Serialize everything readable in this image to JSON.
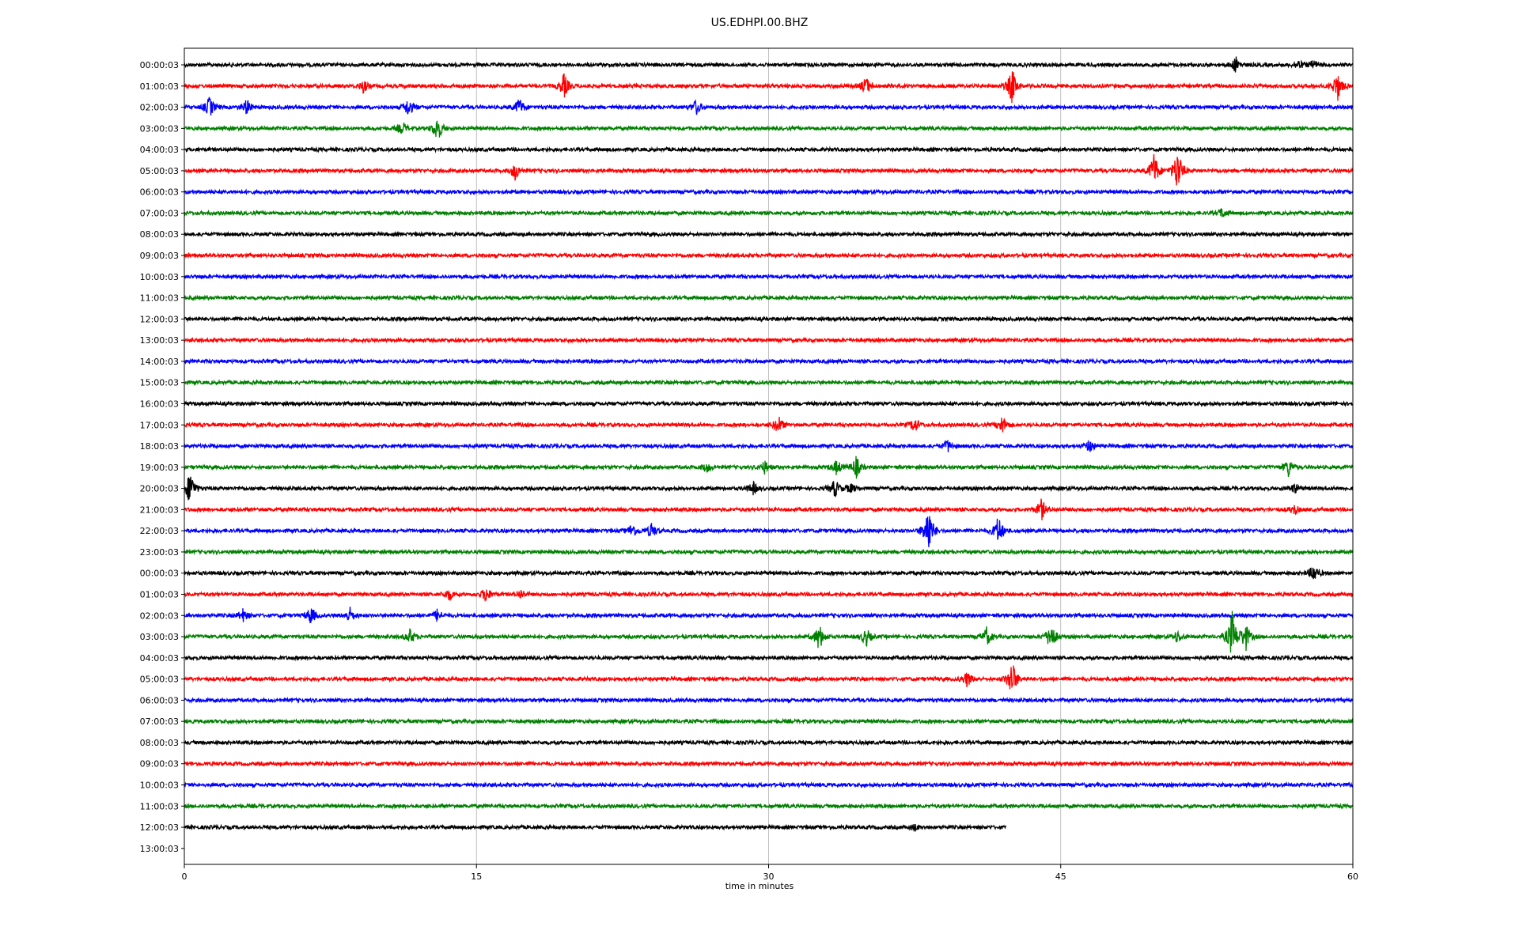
{
  "chart_data": {
    "type": "line",
    "title": "US.EDHPI.00.BHZ",
    "xlabel": "time in minutes",
    "ylabel": "",
    "xlim": [
      0,
      60
    ],
    "x_ticks": [
      "0",
      "15",
      "30",
      "45",
      "60"
    ],
    "grid": "vertical",
    "trace_colors": [
      "#000000",
      "#ff0000",
      "#0000ff",
      "#008000"
    ],
    "row_labels": [
      "00:00:03",
      "01:00:03",
      "02:00:03",
      "03:00:03",
      "04:00:03",
      "05:00:03",
      "06:00:03",
      "07:00:03",
      "08:00:03",
      "09:00:03",
      "10:00:03",
      "11:00:03",
      "12:00:03",
      "13:00:03",
      "14:00:03",
      "15:00:03",
      "16:00:03",
      "17:00:03",
      "18:00:03",
      "19:00:03",
      "20:00:03",
      "21:00:03",
      "22:00:03",
      "23:00:03",
      "00:00:03",
      "01:00:03",
      "02:00:03",
      "03:00:03",
      "04:00:03",
      "05:00:03",
      "06:00:03",
      "07:00:03",
      "08:00:03",
      "09:00:03",
      "10:00:03",
      "11:00:03",
      "12:00:03",
      "13:00:03"
    ],
    "trace_end_minutes": [
      60,
      60,
      60,
      60,
      60,
      60,
      60,
      60,
      60,
      60,
      60,
      60,
      60,
      60,
      60,
      60,
      60,
      60,
      60,
      60,
      60,
      60,
      60,
      60,
      60,
      60,
      60,
      60,
      60,
      60,
      60,
      60,
      60,
      60,
      60,
      60,
      42.2,
      0
    ],
    "events": [
      {
        "row": 0,
        "minute": 54,
        "amp": 0.5
      },
      {
        "row": 0,
        "minute": 57.2,
        "amp": 0.3
      },
      {
        "row": 0,
        "minute": 58,
        "amp": 0.3
      },
      {
        "row": 1,
        "minute": 9.2,
        "amp": 0.4
      },
      {
        "row": 1,
        "minute": 19.5,
        "amp": 0.8
      },
      {
        "row": 1,
        "minute": 35,
        "amp": 0.6
      },
      {
        "row": 1,
        "minute": 42.5,
        "amp": 1.2
      },
      {
        "row": 1,
        "minute": 59.2,
        "amp": 1.0
      },
      {
        "row": 2,
        "minute": 1.3,
        "amp": 0.7
      },
      {
        "row": 2,
        "minute": 3.2,
        "amp": 0.5
      },
      {
        "row": 2,
        "minute": 11.5,
        "amp": 0.6
      },
      {
        "row": 2,
        "minute": 17.2,
        "amp": 0.6
      },
      {
        "row": 2,
        "minute": 26.3,
        "amp": 0.5
      },
      {
        "row": 3,
        "minute": 11.2,
        "amp": 0.4
      },
      {
        "row": 3,
        "minute": 13,
        "amp": 0.9
      },
      {
        "row": 5,
        "minute": 17,
        "amp": 0.6
      },
      {
        "row": 5,
        "minute": 49.8,
        "amp": 1.2
      },
      {
        "row": 5,
        "minute": 51,
        "amp": 1.5
      },
      {
        "row": 7,
        "minute": 53.3,
        "amp": 0.3
      },
      {
        "row": 17,
        "minute": 30.5,
        "amp": 0.6
      },
      {
        "row": 17,
        "minute": 37.5,
        "amp": 0.5
      },
      {
        "row": 17,
        "minute": 42,
        "amp": 0.6
      },
      {
        "row": 18,
        "minute": 39.2,
        "amp": 0.4
      },
      {
        "row": 18,
        "minute": 46.5,
        "amp": 0.4
      },
      {
        "row": 19,
        "minute": 26.8,
        "amp": 0.3
      },
      {
        "row": 19,
        "minute": 29.8,
        "amp": 0.4
      },
      {
        "row": 19,
        "minute": 33.5,
        "amp": 0.5
      },
      {
        "row": 19,
        "minute": 34.5,
        "amp": 0.7
      },
      {
        "row": 19,
        "minute": 56.7,
        "amp": 0.6
      },
      {
        "row": 20,
        "minute": 0.3,
        "amp": 1.2
      },
      {
        "row": 20,
        "minute": 29.2,
        "amp": 0.4
      },
      {
        "row": 20,
        "minute": 33.4,
        "amp": 0.6
      },
      {
        "row": 20,
        "minute": 34.2,
        "amp": 0.3
      },
      {
        "row": 20,
        "minute": 57,
        "amp": 0.3
      },
      {
        "row": 21,
        "minute": 44,
        "amp": 0.7
      },
      {
        "row": 21,
        "minute": 57,
        "amp": 0.3
      },
      {
        "row": 22,
        "minute": 23,
        "amp": 0.5
      },
      {
        "row": 22,
        "minute": 24,
        "amp": 0.5
      },
      {
        "row": 22,
        "minute": 38.2,
        "amp": 1.8
      },
      {
        "row": 22,
        "minute": 41.8,
        "amp": 1.0
      },
      {
        "row": 24,
        "minute": 58,
        "amp": 0.6
      },
      {
        "row": 25,
        "minute": 13.6,
        "amp": 0.4
      },
      {
        "row": 25,
        "minute": 15.5,
        "amp": 0.5
      },
      {
        "row": 25,
        "minute": 17.3,
        "amp": 0.3
      },
      {
        "row": 26,
        "minute": 3,
        "amp": 0.4
      },
      {
        "row": 26,
        "minute": 6.5,
        "amp": 0.6
      },
      {
        "row": 26,
        "minute": 8.5,
        "amp": 0.5
      },
      {
        "row": 26,
        "minute": 13,
        "amp": 0.4
      },
      {
        "row": 27,
        "minute": 11.6,
        "amp": 0.5
      },
      {
        "row": 27,
        "minute": 32.6,
        "amp": 0.9
      },
      {
        "row": 27,
        "minute": 35,
        "amp": 0.6
      },
      {
        "row": 27,
        "minute": 41.2,
        "amp": 0.6
      },
      {
        "row": 27,
        "minute": 44.5,
        "amp": 1.0
      },
      {
        "row": 27,
        "minute": 51,
        "amp": 0.4
      },
      {
        "row": 27,
        "minute": 53.8,
        "amp": 1.6
      },
      {
        "row": 27,
        "minute": 54.5,
        "amp": 0.9
      },
      {
        "row": 29,
        "minute": 40.2,
        "amp": 0.5
      },
      {
        "row": 29,
        "minute": 42.5,
        "amp": 1.3
      },
      {
        "row": 36,
        "minute": 37.5,
        "amp": 0.2
      }
    ]
  }
}
